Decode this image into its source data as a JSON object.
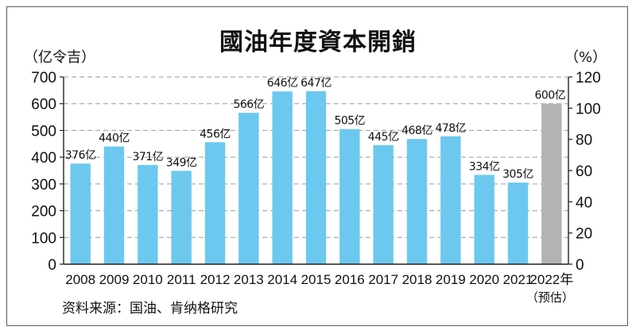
{
  "chart_data": {
    "type": "bar",
    "title": "國油年度資本開銷",
    "ylabel": "（亿令吉）",
    "y2label": "（%）",
    "categories": [
      "2008",
      "2009",
      "2010",
      "2011",
      "2012",
      "2013",
      "2014",
      "2015",
      "2016",
      "2017",
      "2018",
      "2019",
      "2020",
      "2021",
      "2022年"
    ],
    "category_note": "（预估）",
    "values": [
      376,
      440,
      371,
      349,
      456,
      566,
      646,
      647,
      505,
      445,
      468,
      478,
      334,
      305,
      600
    ],
    "data_labels": [
      "376亿",
      "440亿",
      "371亿",
      "349亿",
      "456亿",
      "566亿",
      "646亿",
      "647亿",
      "505亿",
      "445亿",
      "468亿",
      "478亿",
      "334亿",
      "305亿",
      "600亿"
    ],
    "ylim": [
      0,
      700
    ],
    "yticks": [
      0,
      100,
      200,
      300,
      400,
      500,
      600,
      700
    ],
    "y2lim": [
      0,
      120
    ],
    "y2ticks": [
      0,
      20,
      40,
      60,
      80,
      100,
      120
    ],
    "grid": "dashed horizontal",
    "colors": {
      "actual": "#6cc8ee",
      "forecast": "#b3b3b3"
    },
    "highlight_last_as_forecast": true,
    "source": "资料来源：国油、肯纳格研究"
  }
}
